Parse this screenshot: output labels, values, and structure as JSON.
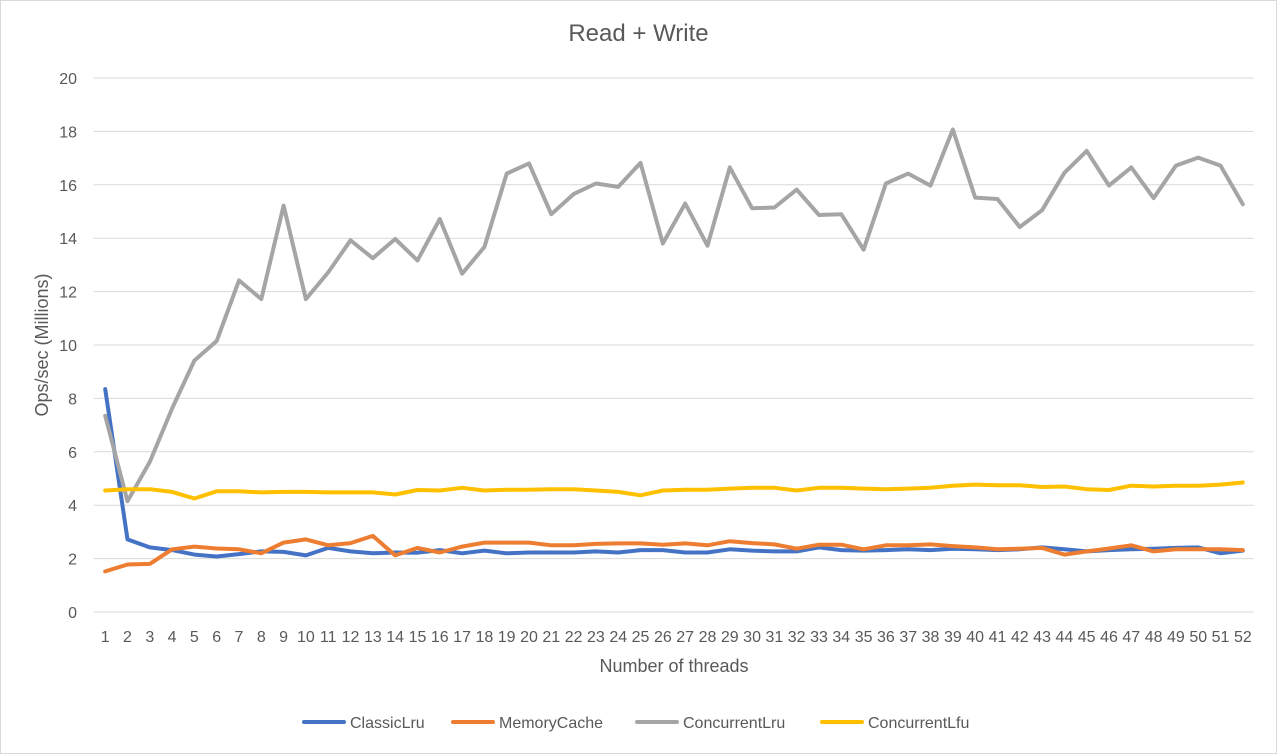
{
  "chart_data": {
    "type": "line",
    "title": "Read + Write",
    "xlabel": "Number of threads",
    "ylabel": "Ops/sec (Millions)",
    "ylim": [
      0,
      20
    ],
    "yticks": [
      0,
      2,
      4,
      6,
      8,
      10,
      12,
      14,
      16,
      18,
      20
    ],
    "grid": true,
    "legend_position": "bottom",
    "categories": [
      1,
      2,
      3,
      4,
      5,
      6,
      7,
      8,
      9,
      10,
      11,
      12,
      13,
      14,
      15,
      16,
      17,
      18,
      19,
      20,
      21,
      22,
      23,
      24,
      25,
      26,
      27,
      28,
      29,
      30,
      31,
      32,
      33,
      34,
      35,
      36,
      37,
      38,
      39,
      40,
      41,
      42,
      43,
      44,
      45,
      46,
      47,
      48,
      49,
      50,
      51,
      52
    ],
    "series": [
      {
        "name": "ClassicLru",
        "color": "#4472c4",
        "values": [
          8.35,
          2.72,
          2.42,
          2.32,
          2.15,
          2.08,
          2.17,
          2.27,
          2.25,
          2.12,
          2.4,
          2.27,
          2.2,
          2.23,
          2.22,
          2.32,
          2.2,
          2.3,
          2.2,
          2.23,
          2.23,
          2.23,
          2.27,
          2.23,
          2.32,
          2.32,
          2.23,
          2.23,
          2.35,
          2.3,
          2.27,
          2.27,
          2.42,
          2.32,
          2.3,
          2.32,
          2.35,
          2.32,
          2.37,
          2.35,
          2.32,
          2.35,
          2.42,
          2.35,
          2.27,
          2.32,
          2.35,
          2.37,
          2.4,
          2.42,
          2.2,
          2.3
        ]
      },
      {
        "name": "MemoryCache",
        "color": "#ed7d31",
        "values": [
          1.52,
          1.78,
          1.8,
          2.35,
          2.45,
          2.38,
          2.35,
          2.2,
          2.6,
          2.72,
          2.5,
          2.58,
          2.85,
          2.12,
          2.4,
          2.23,
          2.45,
          2.6,
          2.6,
          2.6,
          2.5,
          2.5,
          2.55,
          2.57,
          2.57,
          2.52,
          2.57,
          2.5,
          2.65,
          2.58,
          2.53,
          2.37,
          2.52,
          2.52,
          2.35,
          2.5,
          2.5,
          2.53,
          2.47,
          2.42,
          2.35,
          2.37,
          2.4,
          2.15,
          2.27,
          2.38,
          2.5,
          2.27,
          2.35,
          2.35,
          2.35,
          2.32
        ]
      },
      {
        "name": "ConcurrentLru",
        "color": "#a5a5a5",
        "values": [
          7.35,
          4.15,
          5.62,
          7.62,
          9.42,
          10.15,
          12.42,
          11.72,
          15.22,
          11.72,
          12.72,
          13.92,
          13.25,
          13.97,
          13.17,
          14.72,
          12.67,
          13.67,
          16.42,
          16.8,
          14.9,
          15.65,
          16.05,
          15.92,
          16.82,
          13.8,
          15.3,
          13.72,
          16.65,
          15.12,
          15.15,
          15.82,
          14.87,
          14.9,
          13.57,
          16.05,
          16.42,
          15.97,
          18.07,
          15.52,
          15.47,
          14.42,
          15.05,
          16.45,
          17.27,
          15.97,
          16.65,
          15.5,
          16.72,
          17.02,
          16.72,
          15.27
        ]
      },
      {
        "name": "ConcurrentLfu",
        "color": "#ffc000",
        "values": [
          4.55,
          4.6,
          4.6,
          4.5,
          4.25,
          4.52,
          4.52,
          4.48,
          4.5,
          4.5,
          4.48,
          4.48,
          4.48,
          4.4,
          4.57,
          4.55,
          4.65,
          4.55,
          4.58,
          4.58,
          4.6,
          4.6,
          4.55,
          4.5,
          4.37,
          4.55,
          4.58,
          4.58,
          4.62,
          4.65,
          4.65,
          4.55,
          4.65,
          4.65,
          4.62,
          4.6,
          4.62,
          4.65,
          4.73,
          4.77,
          4.75,
          4.75,
          4.68,
          4.7,
          4.6,
          4.57,
          4.73,
          4.7,
          4.73,
          4.73,
          4.77,
          4.85
        ]
      }
    ]
  }
}
